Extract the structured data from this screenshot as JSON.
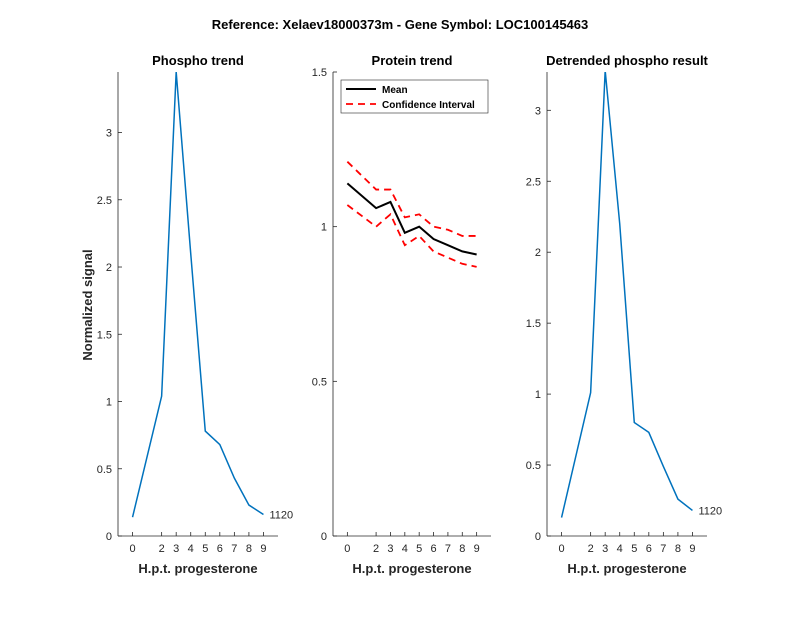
{
  "suptitle": "Reference:  Xelaev18000373m - Gene Symbol:  LOC100145463",
  "colors": {
    "phospho": "#0072bd",
    "mean": "#000000",
    "ci": "#ff0000",
    "axis": "#262626"
  },
  "chart_data": [
    {
      "type": "line",
      "title": "Phospho trend",
      "xlabel": "H.p.t. progesterone",
      "ylabel": "Normalized signal",
      "xlim": [
        -1,
        10
      ],
      "ylim": [
        0,
        3.45
      ],
      "xticks": [
        "0",
        "2",
        "3",
        "4",
        "5",
        "6",
        "7",
        "8",
        "9"
      ],
      "yticks": [
        "0",
        "0.5",
        "1",
        "1.5",
        "2",
        "2.5",
        "3"
      ],
      "x": [
        0,
        2,
        3,
        4,
        5,
        6,
        7,
        8,
        9
      ],
      "y": [
        0.14,
        1.04,
        3.45,
        2.1,
        0.78,
        0.68,
        0.43,
        0.23,
        0.16
      ],
      "annotation": "1120"
    },
    {
      "type": "line",
      "title": "Protein trend",
      "xlabel": "H.p.t. progesterone",
      "xlim": [
        -1,
        10
      ],
      "ylim": [
        0,
        1.5
      ],
      "xticks": [
        "0",
        "2",
        "3",
        "4",
        "5",
        "6",
        "7",
        "8",
        "9"
      ],
      "yticks": [
        "0",
        "0.5",
        "1",
        "1.5"
      ],
      "x": [
        0,
        2,
        3,
        4,
        5,
        6,
        7,
        8,
        9
      ],
      "series": [
        {
          "name": "Mean",
          "values": [
            1.14,
            1.06,
            1.08,
            0.98,
            1.0,
            0.96,
            0.94,
            0.92,
            0.91
          ]
        },
        {
          "name": "Confidence Interval",
          "values": [
            1.21,
            1.12,
            1.12,
            1.03,
            1.04,
            1.0,
            0.99,
            0.97,
            0.97
          ]
        },
        {
          "values": [
            1.07,
            1.0,
            1.04,
            0.94,
            0.97,
            0.92,
            0.9,
            0.88,
            0.87
          ]
        }
      ],
      "legend": "top-left"
    },
    {
      "type": "line",
      "title": "Detrended phospho result",
      "xlabel": "H.p.t. progesterone",
      "xlim": [
        -1,
        10
      ],
      "ylim": [
        0,
        3.27
      ],
      "xticks": [
        "0",
        "2",
        "3",
        "4",
        "5",
        "6",
        "7",
        "8",
        "9"
      ],
      "yticks": [
        "0",
        "0.5",
        "1",
        "1.5",
        "2",
        "2.5",
        "3"
      ],
      "x": [
        0,
        2,
        3,
        4,
        5,
        6,
        7,
        8,
        9
      ],
      "y": [
        0.13,
        1.01,
        3.28,
        2.2,
        0.8,
        0.73,
        0.49,
        0.26,
        0.18
      ],
      "annotation": "1120"
    }
  ]
}
